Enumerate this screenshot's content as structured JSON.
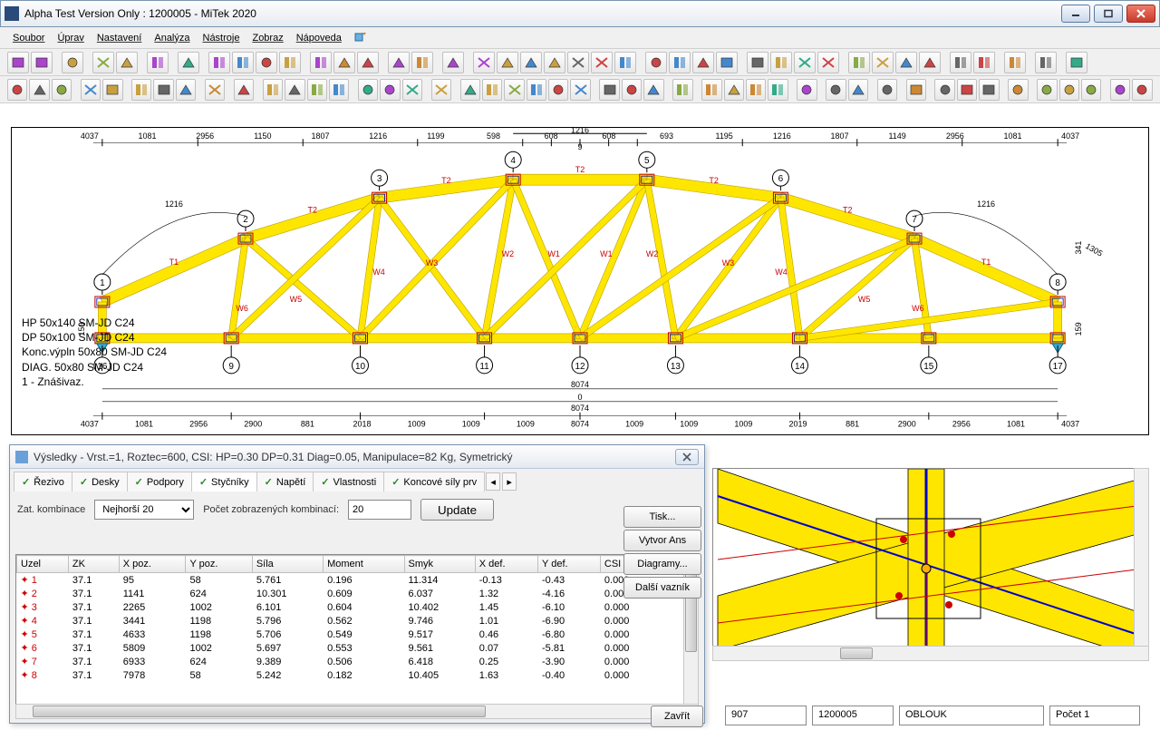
{
  "window": {
    "title": "Alpha Test Version Only : 1200005 - MiTek 2020"
  },
  "menu": [
    "Soubor",
    "Úprav",
    "Nastavení",
    "Analýza",
    "Nástroje",
    "Zobraz",
    "Nápoveda"
  ],
  "truss": {
    "annot_lines": [
      "HP 50x140 SM-JD C24",
      "DP 50x100 SM-JD C24",
      "Konc.výpln 50x80 SM-JD C24",
      "DIAG. 50x80 SM-JD C24",
      "1 - Znášivaz."
    ],
    "top_dims": [
      "4037",
      "1081",
      "2956",
      "1150",
      "1807",
      "1216",
      "1199",
      "598",
      "608",
      "608",
      "693",
      "1195",
      "1216",
      "1807",
      "1149",
      "2956",
      "1081",
      "4037"
    ],
    "top_span": "1216",
    "arc_dims_left": "1216",
    "arc_dims_right": "1216",
    "arc_right_outer": "1305",
    "bottom_span1": "8074",
    "bottom_span2": "8074",
    "bottom_zero": "0",
    "bottom_num": "9",
    "bottom_dims": [
      "4037",
      "1081",
      "2956",
      "2900",
      "881",
      "2018",
      "1009",
      "1009",
      "1009",
      "8074",
      "1009",
      "1009",
      "1009",
      "2019",
      "881",
      "2900",
      "2956",
      "1081",
      "4037"
    ],
    "left_h": "159",
    "right_h": "159",
    "right_h2": "341",
    "top_nodes": [
      "1",
      "2",
      "3",
      "4",
      "5",
      "6",
      "7",
      "8"
    ],
    "bottom_nodes": [
      "16",
      "9",
      "10",
      "11",
      "12",
      "13",
      "14",
      "15",
      "17"
    ],
    "member_labels": {
      "T1": "T1",
      "T2": "T2",
      "W1": "W1",
      "W2": "W2",
      "W3": "W3",
      "W4": "W4",
      "W5": "W5",
      "W6": "W6"
    },
    "colors": {
      "timber": "#ffe600",
      "timber_border": "#b8a000",
      "line": "#0000aa",
      "plate": "#c00000",
      "dim": "#000000"
    }
  },
  "results": {
    "title": "Výsledky - Vrst.=1, Roztec=600, CSI: HP=0.30 DP=0.31 Diag=0.05, Manipulace=82 Kg, Symetrický",
    "tabs": [
      "Řezivo",
      "Desky",
      "Podpory",
      "Styčníky",
      "Napětí",
      "Vlastnosti",
      "Koncové síly prv"
    ],
    "active_tab_index": 3,
    "combo_label": "Zat. kombinace",
    "combo_value": "Nejhorší 20",
    "count_label": "Počet zobrazených kombinací:",
    "count_value": "20",
    "update_label": "Update",
    "columns": [
      "Uzel",
      "ZK",
      "X poz.",
      "Y poz.",
      "Síla",
      "Moment",
      "Smyk",
      "X def.",
      "Y def.",
      "CSI"
    ],
    "rows": [
      [
        "1",
        "37.1",
        "95",
        "58",
        "5.761",
        "0.196",
        "11.314",
        "-0.13",
        "-0.43",
        "0.000"
      ],
      [
        "2",
        "37.1",
        "1141",
        "624",
        "10.301",
        "0.609",
        "6.037",
        "1.32",
        "-4.16",
        "0.000"
      ],
      [
        "3",
        "37.1",
        "2265",
        "1002",
        "6.101",
        "0.604",
        "10.402",
        "1.45",
        "-6.10",
        "0.000"
      ],
      [
        "4",
        "37.1",
        "3441",
        "1198",
        "5.796",
        "0.562",
        "9.746",
        "1.01",
        "-6.90",
        "0.000"
      ],
      [
        "5",
        "37.1",
        "4633",
        "1198",
        "5.706",
        "0.549",
        "9.517",
        "0.46",
        "-6.80",
        "0.000"
      ],
      [
        "6",
        "37.1",
        "5809",
        "1002",
        "5.697",
        "0.553",
        "9.561",
        "0.07",
        "-5.81",
        "0.000"
      ],
      [
        "7",
        "37.1",
        "6933",
        "624",
        "9.389",
        "0.506",
        "6.418",
        "0.25",
        "-3.90",
        "0.000"
      ],
      [
        "8",
        "37.1",
        "7978",
        "58",
        "5.242",
        "0.182",
        "10.405",
        "1.63",
        "-0.40",
        "0.000"
      ]
    ]
  },
  "side_buttons": [
    "Tisk...",
    "Vytvor Ans",
    "Diagramy...",
    "Další vazník"
  ],
  "close_btn": "Zavřít",
  "status": {
    "f1": "907",
    "f2": "1200005",
    "f3": "OBLOUK",
    "f4": "Počet 1"
  }
}
